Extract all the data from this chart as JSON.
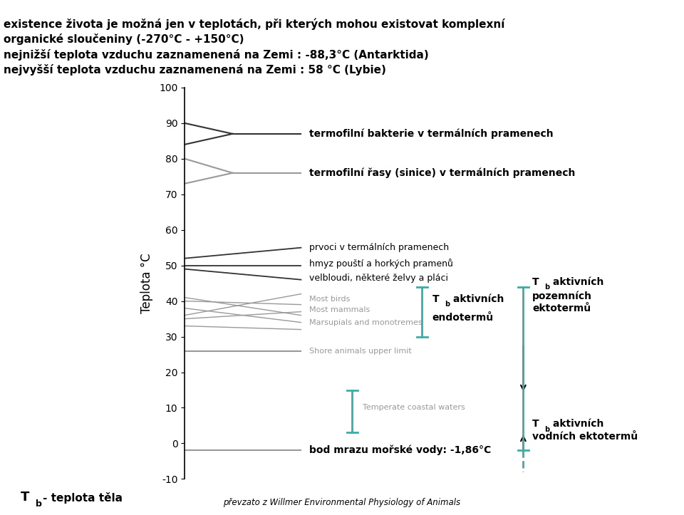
{
  "header_lines": [
    "existence života je možná jen v teplotách, při kterých mohou existovat komplexní",
    "organické sloučeniny (-270°C - +150°C)",
    "nejnižší teplota vzduchu zaznamenená na Zemi : -88,3°C (Antarktida)",
    "nejvyšší teplota vzduchu zaznamenená na Zemi : 58 °C (Lybie)"
  ],
  "ylabel": "Teplota °C",
  "ylim": [
    -10,
    100
  ],
  "yticks": [
    -10,
    0,
    10,
    20,
    30,
    40,
    50,
    60,
    70,
    80,
    90,
    100
  ],
  "teal_color": "#3aada8",
  "gray_color": "#999999",
  "dark_color": "#333333",
  "bg_color": "#ffffff",
  "annotation_bacteria": "termofilní bakterie v termálních pramenech",
  "annotation_algae": "termofilní řasy (sinice) v termálních pramenech",
  "ann_group1_1": "prvoci v termálních pramenech",
  "ann_group1_2": "hmyz pouští a horkých pramenů",
  "ann_group1_3": "velbloudi, některé želvy a pláci",
  "ann_birds": "Most birds",
  "ann_mammals": "Most mammals",
  "ann_marsupials": "Marsupials and monotremes",
  "ann_shore": "Shore animals upper limit",
  "ann_sea": "bod mrazu mořské vody: -1,86°C",
  "ann_coastal": "Temperate coastal waters",
  "footer_right": "převzato z Willmer Environmental Physiology of Animals"
}
